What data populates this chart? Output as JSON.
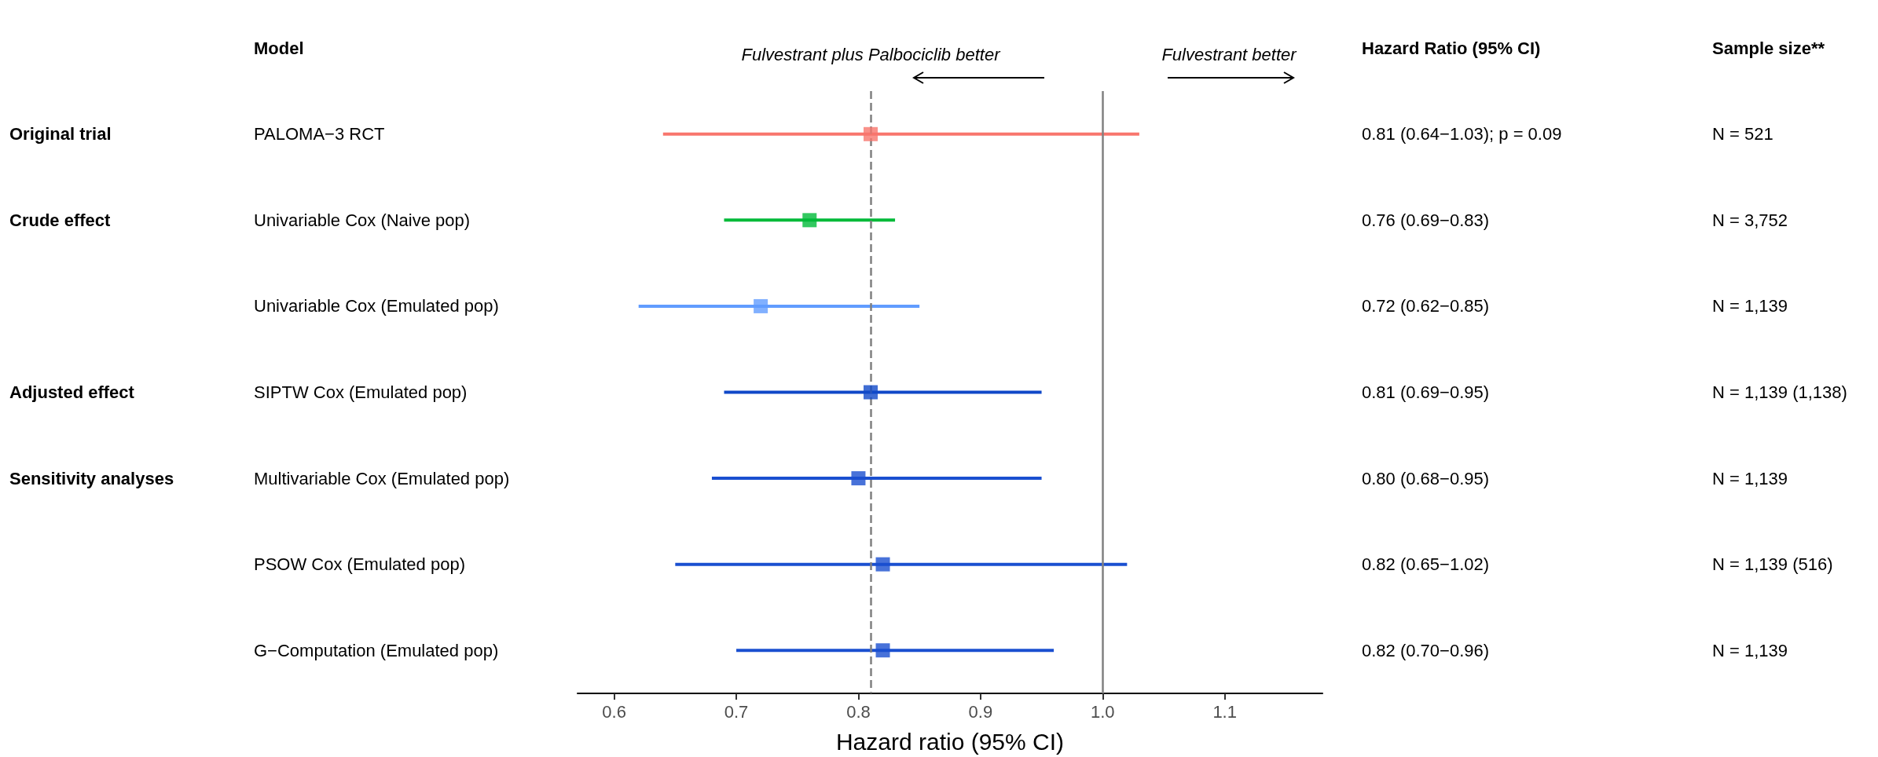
{
  "chart_data": {
    "type": "scatter",
    "orientation": "horizontal",
    "xlabel": "Hazard ratio (95% CI)",
    "categories": [
      "PALOMA−3 RCT",
      "Univariable Cox (Naive pop)",
      "Univariable Cox (Emulated pop)",
      "SIPTW Cox (Emulated pop)",
      "Multivariable Cox (Emulated pop)",
      "PSOW Cox (Emulated pop)",
      "G−Computation (Emulated pop)"
    ],
    "values": [
      0.81,
      0.76,
      0.72,
      0.81,
      0.8,
      0.82,
      0.82
    ],
    "errors": [
      [
        0.64,
        1.03
      ],
      [
        0.69,
        0.83
      ],
      [
        0.62,
        0.85
      ],
      [
        0.69,
        0.95
      ],
      [
        0.68,
        0.95
      ],
      [
        0.65,
        1.02
      ],
      [
        0.7,
        0.96
      ]
    ],
    "colors": [
      "#f8766d",
      "#00ba38",
      "#619cff",
      "#1048c8",
      "#1a4fd0",
      "#1a4fd0",
      "#1a4fd0"
    ],
    "marker": "square",
    "xlim": [
      0.57,
      1.18
    ],
    "xticks": [
      0.6,
      0.7,
      0.8,
      0.9,
      {
        "value": 1,
        "label": "1.0"
      },
      1.1
    ],
    "ref_lines": [
      {
        "axis": "x",
        "value": 0.81,
        "color": "#808080",
        "line_style": "dashed"
      },
      {
        "axis": "x",
        "value": 1,
        "color": "#808080",
        "line_style": "solid"
      }
    ],
    "annotations": [
      "Model",
      "Hazard Ratio (95% CI)",
      "Sample size**",
      "Fulvestrant plus Palbociclib better",
      "Fulvestrant better",
      "Original trial",
      "Crude effect",
      "Adjusted effect",
      "Sensitivity analyses",
      "0.81 (0.64−1.03); p = 0.09",
      "0.76 (0.69−0.83)",
      "0.72 (0.62−0.85)",
      "0.81 (0.69−0.95)",
      "0.80 (0.68−0.95)",
      "0.82 (0.65−1.02)",
      "0.82 (0.70−0.96)",
      "N = 521",
      "N = 3,752",
      "N = 1,139",
      "N = 1,139 (1,138)",
      "N = 1,139",
      "N = 1,139 (516)",
      "N = 1,139"
    ]
  }
}
